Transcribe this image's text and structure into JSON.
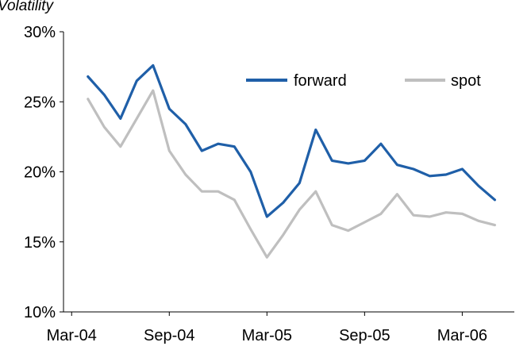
{
  "chart_data": {
    "type": "line",
    "title": "",
    "ylabel": "Volatility",
    "xlabel": "",
    "x_ticks": [
      "Mar-04",
      "Sep-04",
      "Mar-05",
      "Sep-05",
      "Mar-06"
    ],
    "y_ticks": [
      "10%",
      "15%",
      "20%",
      "25%",
      "30%"
    ],
    "ylim": [
      10,
      30
    ],
    "x_range": [
      "2004-04",
      "2006-05"
    ],
    "grid": false,
    "legend": "top-right",
    "colors": {
      "forward": "#1F5FA8",
      "spot": "#BFBFBF"
    },
    "x": [
      "2004-04",
      "2004-05",
      "2004-06",
      "2004-07",
      "2004-08",
      "2004-09",
      "2004-10",
      "2004-11",
      "2004-12",
      "2005-01",
      "2005-02",
      "2005-03",
      "2005-04",
      "2005-05",
      "2005-06",
      "2005-07",
      "2005-08",
      "2005-09",
      "2005-10",
      "2005-11",
      "2005-12",
      "2006-01",
      "2006-02",
      "2006-03",
      "2006-04",
      "2006-05"
    ],
    "series": [
      {
        "name": "forward",
        "values": [
          26.8,
          25.5,
          23.8,
          26.5,
          27.6,
          24.5,
          23.4,
          21.5,
          22.0,
          21.8,
          20.0,
          16.8,
          17.8,
          19.2,
          23.0,
          20.8,
          20.6,
          20.8,
          22.0,
          20.5,
          20.2,
          19.7,
          19.8,
          20.2,
          19.0,
          18.0
        ]
      },
      {
        "name": "spot",
        "values": [
          25.2,
          23.2,
          21.8,
          23.8,
          25.8,
          21.5,
          19.8,
          18.6,
          18.6,
          18.0,
          15.9,
          13.9,
          15.5,
          17.3,
          18.6,
          16.2,
          15.8,
          16.4,
          17.0,
          18.4,
          16.9,
          16.8,
          17.1,
          17.0,
          16.5,
          16.2
        ]
      }
    ]
  }
}
